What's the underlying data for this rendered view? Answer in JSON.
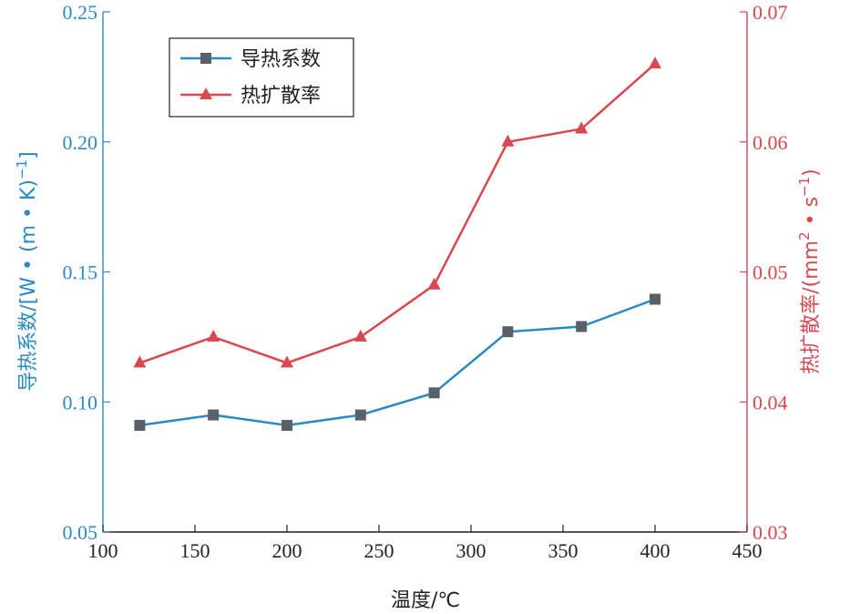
{
  "chart_data": {
    "type": "line",
    "x": [
      120,
      160,
      200,
      240,
      280,
      320,
      360,
      400
    ],
    "xlabel": "温度/℃",
    "xlim": [
      100,
      450
    ],
    "xticks": [
      "100",
      "150",
      "200",
      "250",
      "300",
      "350",
      "400",
      "450"
    ],
    "left_axis": {
      "label_parts": [
        "导热系数/[W • (m • K)",
        "−1",
        "]"
      ],
      "ylim": [
        0.05,
        0.25
      ],
      "ticks": [
        "0.05",
        "0.10",
        "0.15",
        "0.20",
        "0.25"
      ],
      "color": "#2a8bc4"
    },
    "right_axis": {
      "label_parts": [
        "热扩散率/(mm",
        "2",
        " • s",
        "−1",
        ")"
      ],
      "ylim": [
        0.03,
        0.07
      ],
      "ticks": [
        "0.03",
        "0.04",
        "0.05",
        "0.06",
        "0.07"
      ],
      "color": "#d9474f"
    },
    "series": [
      {
        "name": "导热系数",
        "axis": "left",
        "marker": "square",
        "line_color": "#2a8bc4",
        "marker_color": "#5a6068",
        "values": [
          0.091,
          0.095,
          0.091,
          0.095,
          0.1035,
          0.127,
          0.129,
          0.1395
        ]
      },
      {
        "name": "热扩散率",
        "axis": "right",
        "marker": "triangle",
        "line_color": "#d9474f",
        "marker_color": "#d9474f",
        "values": [
          0.043,
          0.045,
          0.043,
          0.045,
          0.049,
          0.06,
          0.061,
          0.066
        ]
      }
    ],
    "legend_position": "top-left",
    "grid": false
  }
}
